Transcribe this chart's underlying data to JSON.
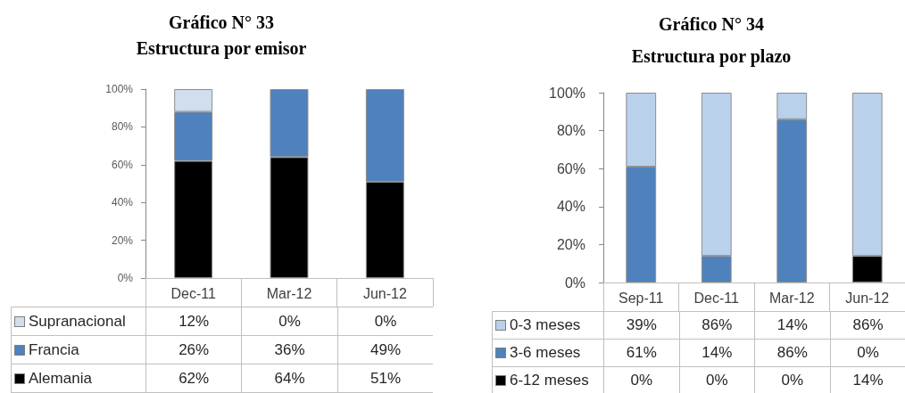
{
  "chart_data": [
    {
      "type": "bar",
      "title": "Gráfico N° 33",
      "subtitle": "Estructura por emisor",
      "stacked": true,
      "categories": [
        "Dec-11",
        "Mar-12",
        "Jun-12"
      ],
      "series": [
        {
          "name": "Alemania",
          "color": "#000000",
          "values": [
            62,
            64,
            51
          ],
          "value_labels": [
            "62%",
            "64%",
            "51%"
          ]
        },
        {
          "name": "Francia",
          "color": "#4f81bd",
          "values": [
            26,
            36,
            49
          ],
          "value_labels": [
            "26%",
            "36%",
            "49%"
          ]
        },
        {
          "name": "Supranacional",
          "color": "#d0deed",
          "values": [
            12,
            0,
            0
          ],
          "value_labels": [
            "12%",
            "0%",
            "0%"
          ]
        }
      ],
      "ylim": [
        0,
        100
      ],
      "yticks": [
        {
          "value": 0,
          "label": "0%"
        },
        {
          "value": 20,
          "label": "20%"
        },
        {
          "value": 40,
          "label": "40%"
        },
        {
          "value": 60,
          "label": "60%"
        },
        {
          "value": 80,
          "label": "80%"
        },
        {
          "value": 100,
          "label": "100%"
        }
      ],
      "grid": false,
      "legend": "bottom"
    },
    {
      "type": "bar",
      "title": "Gráfico N° 34",
      "subtitle": "Estructura por plazo",
      "stacked": true,
      "categories": [
        "Sep-11",
        "Dec-11",
        "Mar-12",
        "Jun-12"
      ],
      "series": [
        {
          "name": "6-12 meses",
          "color": "#000000",
          "values": [
            0,
            0,
            0,
            14
          ],
          "value_labels": [
            "0%",
            "0%",
            "0%",
            "14%"
          ]
        },
        {
          "name": "3-6 meses",
          "color": "#4f81bd",
          "values": [
            61,
            14,
            86,
            0
          ],
          "value_labels": [
            "61%",
            "14%",
            "86%",
            "0%"
          ]
        },
        {
          "name": "0-3 meses",
          "color": "#b9d1ea",
          "values": [
            39,
            86,
            14,
            86
          ],
          "value_labels": [
            "39%",
            "86%",
            "14%",
            "86%"
          ]
        }
      ],
      "ylim": [
        0,
        100
      ],
      "yticks": [
        {
          "value": 0,
          "label": "0%"
        },
        {
          "value": 20,
          "label": "20%"
        },
        {
          "value": 40,
          "label": "40%"
        },
        {
          "value": 60,
          "label": "60%"
        },
        {
          "value": 80,
          "label": "80%"
        },
        {
          "value": 100,
          "label": "100%"
        }
      ],
      "grid": false,
      "legend": "bottom"
    }
  ]
}
